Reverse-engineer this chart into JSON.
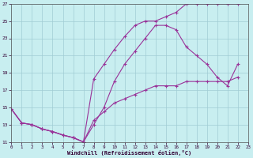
{
  "xlabel": "Windchill (Refroidissement éolien,°C)",
  "xlim": [
    0,
    23
  ],
  "ylim": [
    11,
    27
  ],
  "xticks": [
    0,
    1,
    2,
    3,
    4,
    5,
    6,
    7,
    8,
    9,
    10,
    11,
    12,
    13,
    14,
    15,
    16,
    17,
    18,
    19,
    20,
    21,
    22,
    23
  ],
  "yticks": [
    11,
    13,
    15,
    17,
    19,
    21,
    23,
    25,
    27
  ],
  "background_color": "#c8eef0",
  "grid_color": "#a0ccd4",
  "line_color": "#993399",
  "line1_x": [
    0,
    1,
    2,
    3,
    4,
    5,
    6,
    7,
    8,
    9,
    10,
    11,
    12,
    13,
    14,
    15,
    16,
    17,
    18,
    19,
    20,
    21,
    22
  ],
  "line1_y": [
    14.8,
    13.2,
    13.0,
    12.5,
    12.2,
    11.8,
    11.5,
    11.0,
    18.3,
    20.0,
    21.7,
    23.2,
    24.5,
    25.0,
    25.0,
    25.5,
    26.0,
    27.0,
    27.0,
    27.0,
    27.0,
    27.0,
    27.0
  ],
  "line2_x": [
    0,
    1,
    2,
    3,
    4,
    5,
    6,
    7,
    8,
    9,
    10,
    11,
    12,
    13,
    14,
    15,
    16,
    17,
    18,
    19,
    20,
    21,
    22
  ],
  "line2_y": [
    14.8,
    13.2,
    13.0,
    12.5,
    12.2,
    11.8,
    11.5,
    11.0,
    13.0,
    15.0,
    18.0,
    20.0,
    21.5,
    23.0,
    24.5,
    24.5,
    24.0,
    22.0,
    21.0,
    20.0,
    18.5,
    17.5,
    20.0
  ],
  "line3_x": [
    0,
    1,
    2,
    3,
    4,
    5,
    6,
    7,
    8,
    9,
    10,
    11,
    12,
    13,
    14,
    15,
    16,
    17,
    18,
    19,
    20,
    21,
    22
  ],
  "line3_y": [
    14.8,
    13.2,
    13.0,
    12.5,
    12.2,
    11.8,
    11.5,
    11.0,
    13.5,
    14.5,
    15.5,
    16.0,
    16.5,
    17.0,
    17.5,
    17.5,
    17.5,
    18.0,
    18.0,
    18.0,
    18.0,
    18.0,
    18.5
  ]
}
